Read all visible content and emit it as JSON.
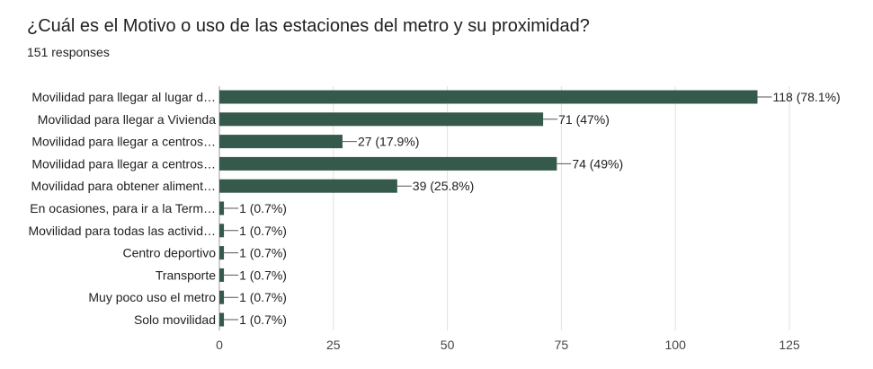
{
  "question": {
    "title": "¿Cuál es el Motivo o uso de las estaciones del metro y su proximidad?",
    "responses": "151 responses"
  },
  "colors": {
    "bar": "#35594a",
    "grid": "#e0e0e0",
    "axis": "#9e9e9e"
  },
  "chart_data": {
    "type": "bar",
    "orientation": "horizontal",
    "title": "¿Cuál es el Motivo o uso de las estaciones del metro y su proximidad?",
    "xlabel": "",
    "ylabel": "",
    "xlim": [
      0,
      125
    ],
    "xticks": [
      0,
      25,
      50,
      75,
      100,
      125
    ],
    "categories": [
      "Movilidad para llegar al lugar d…",
      "Movilidad para llegar a Vivienda",
      "Movilidad para llegar a centros…",
      "Movilidad para llegar a centros…",
      "Movilidad para obtener aliment…",
      "En ocasiones, para ir a la Term…",
      "Movilidad para todas las activid…",
      "Centro deportivo",
      "Transporte",
      "Muy poco uso el metro",
      "Solo movilidad"
    ],
    "values": [
      118,
      71,
      27,
      74,
      39,
      1,
      1,
      1,
      1,
      1,
      1
    ],
    "data_labels": [
      "118 (78.1%)",
      "71 (47%)",
      "27 (17.9%)",
      "74 (49%)",
      "39 (25.8%)",
      "1 (0.7%)",
      "1 (0.7%)",
      "1 (0.7%)",
      "1 (0.7%)",
      "1 (0.7%)",
      "1 (0.7%)"
    ]
  }
}
